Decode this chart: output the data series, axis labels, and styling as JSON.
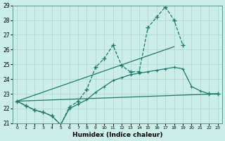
{
  "xlabel": "Humidex (Indice chaleur)",
  "line_dashed": {
    "x": [
      0,
      1,
      2,
      3,
      4,
      5,
      6,
      7,
      8,
      9,
      10,
      11,
      12,
      13,
      14,
      15,
      16,
      17,
      18,
      19,
      20,
      21,
      22,
      23
    ],
    "y": [
      22.5,
      22.2,
      21.9,
      21.75,
      21.5,
      20.9,
      22.1,
      22.5,
      23.3,
      24.8,
      25.4,
      26.3,
      24.9,
      24.5,
      24.5,
      27.5,
      28.2,
      28.9,
      28.0,
      26.3,
      null,
      null,
      23.0,
      23.0
    ]
  },
  "line_upper_diag": {
    "x": [
      0,
      18
    ],
    "y": [
      22.5,
      26.2
    ]
  },
  "line_lower_diag": {
    "x": [
      0,
      23
    ],
    "y": [
      22.5,
      23.0
    ]
  },
  "line_curved": {
    "x": [
      0,
      1,
      2,
      3,
      4,
      5,
      6,
      7,
      8,
      9,
      10,
      11,
      12,
      13,
      14,
      15,
      16,
      17,
      18,
      19,
      20,
      21,
      22,
      23
    ],
    "y": [
      22.5,
      22.2,
      21.9,
      21.75,
      21.5,
      20.9,
      22.0,
      22.3,
      22.6,
      23.1,
      23.5,
      23.9,
      24.1,
      24.3,
      24.4,
      24.5,
      24.6,
      24.7,
      24.8,
      24.7,
      23.5,
      23.2,
      23.0,
      23.0
    ]
  },
  "line_color": "#1a7a6e",
  "bg_color": "#cceee8",
  "grid_color": "#aad4cc",
  "ylim": [
    21,
    29
  ],
  "xlim": [
    -0.5,
    23.5
  ],
  "yticks": [
    21,
    22,
    23,
    24,
    25,
    26,
    27,
    28,
    29
  ],
  "xticks": [
    0,
    1,
    2,
    3,
    4,
    5,
    6,
    7,
    8,
    9,
    10,
    11,
    12,
    13,
    14,
    15,
    16,
    17,
    18,
    19,
    20,
    21,
    22,
    23
  ]
}
